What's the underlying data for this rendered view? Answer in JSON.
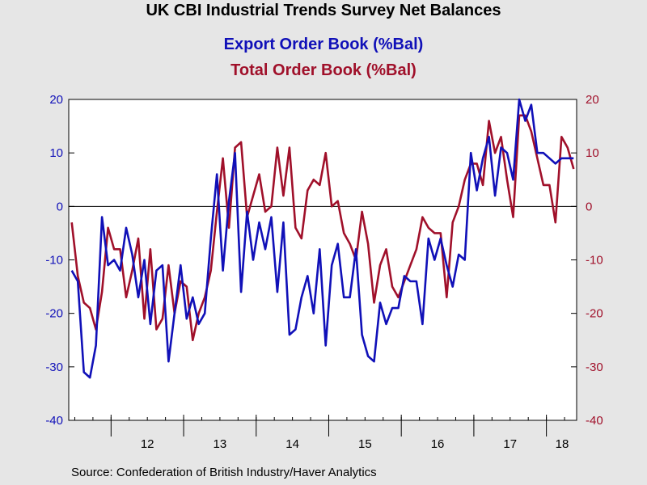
{
  "title": "UK CBI Industrial Trends Survey Net Balances",
  "source": "Source:  Confederation of British Industry/Haver Analytics",
  "colors": {
    "background": "#e6e6e6",
    "plot_bg": "#ffffff",
    "export": "#1010b8",
    "total": "#a0102a"
  },
  "chart_data": {
    "type": "line",
    "title": "UK CBI Industrial Trends Survey Net Balances",
    "x_tick_labels": [
      "12",
      "13",
      "14",
      "15",
      "16",
      "17",
      "18"
    ],
    "ylim": [
      -40,
      20
    ],
    "yticks": [
      20,
      10,
      0,
      -10,
      -20,
      -30,
      -40
    ],
    "y2ticks": [
      20,
      10,
      0,
      -10,
      -20,
      -30,
      -40
    ],
    "zero_line": true,
    "grid": false,
    "series": [
      {
        "name": "Export Order Book (%Bal)",
        "axis": "left",
        "color": "#1010b8",
        "values": [
          -12,
          -14,
          -31,
          -32,
          -26,
          -2,
          -11,
          -10,
          -12,
          -4,
          -9,
          -17,
          -10,
          -22,
          -12,
          -11,
          -29,
          -20,
          -11,
          -21,
          -17,
          -22,
          -20,
          -6,
          6,
          -12,
          1,
          10,
          -16,
          -1,
          -10,
          -3,
          -8,
          -2,
          -16,
          -3,
          -24,
          -23,
          -17,
          -13,
          -20,
          -8,
          -26,
          -11,
          -7,
          -17,
          -17,
          -8,
          -24,
          -28,
          -29,
          -18,
          -22,
          -19,
          -19,
          -13,
          -14,
          -14,
          -22,
          -6,
          -10,
          -6,
          -11,
          -15,
          -9,
          -10,
          10,
          3,
          9,
          13,
          2,
          11,
          10,
          5,
          20,
          16,
          19,
          10,
          10,
          9,
          8,
          9,
          9,
          9
        ]
      },
      {
        "name": "Total Order Book (%Bal)",
        "axis": "right",
        "color": "#a0102a",
        "values": [
          -3,
          -13,
          -18,
          -19,
          -23,
          -16,
          -4,
          -8,
          -8,
          -17,
          -12,
          -6,
          -21,
          -8,
          -23,
          -21,
          -11,
          -20,
          -14,
          -15,
          -25,
          -20,
          -17,
          -12,
          -1,
          9,
          -4,
          11,
          12,
          -2,
          2,
          6,
          -1,
          0,
          11,
          2,
          11,
          -4,
          -6,
          3,
          5,
          4,
          10,
          0,
          1,
          -5,
          -7,
          -10,
          -1,
          -7,
          -18,
          -11,
          -8,
          -15,
          -17,
          -14,
          -11,
          -8,
          -2,
          -4,
          -5,
          -5,
          -17,
          -3,
          0,
          5,
          8,
          8,
          4,
          16,
          10,
          13,
          5,
          -2,
          17,
          17,
          14,
          9,
          4,
          4,
          -3,
          13,
          11,
          7
        ]
      }
    ]
  }
}
